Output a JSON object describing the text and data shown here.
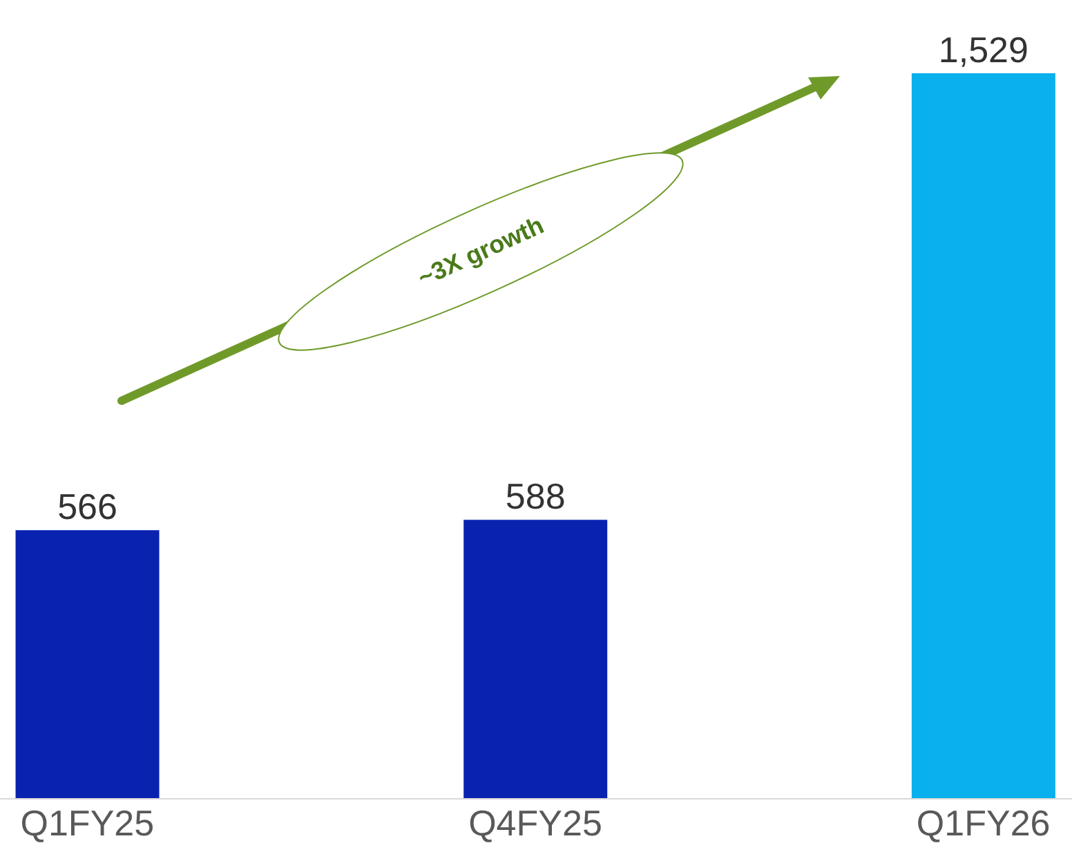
{
  "chart_data": {
    "type": "bar",
    "categories": [
      "Q1FY25",
      "Q4FY25",
      "Q1FY26"
    ],
    "values": [
      566,
      588,
      1529
    ],
    "value_labels": [
      "566",
      "588",
      "1,529"
    ],
    "colors": [
      "#0a22b0",
      "#0a22b0",
      "#0ab0ec"
    ],
    "annotations": [
      "~3X growth"
    ]
  }
}
